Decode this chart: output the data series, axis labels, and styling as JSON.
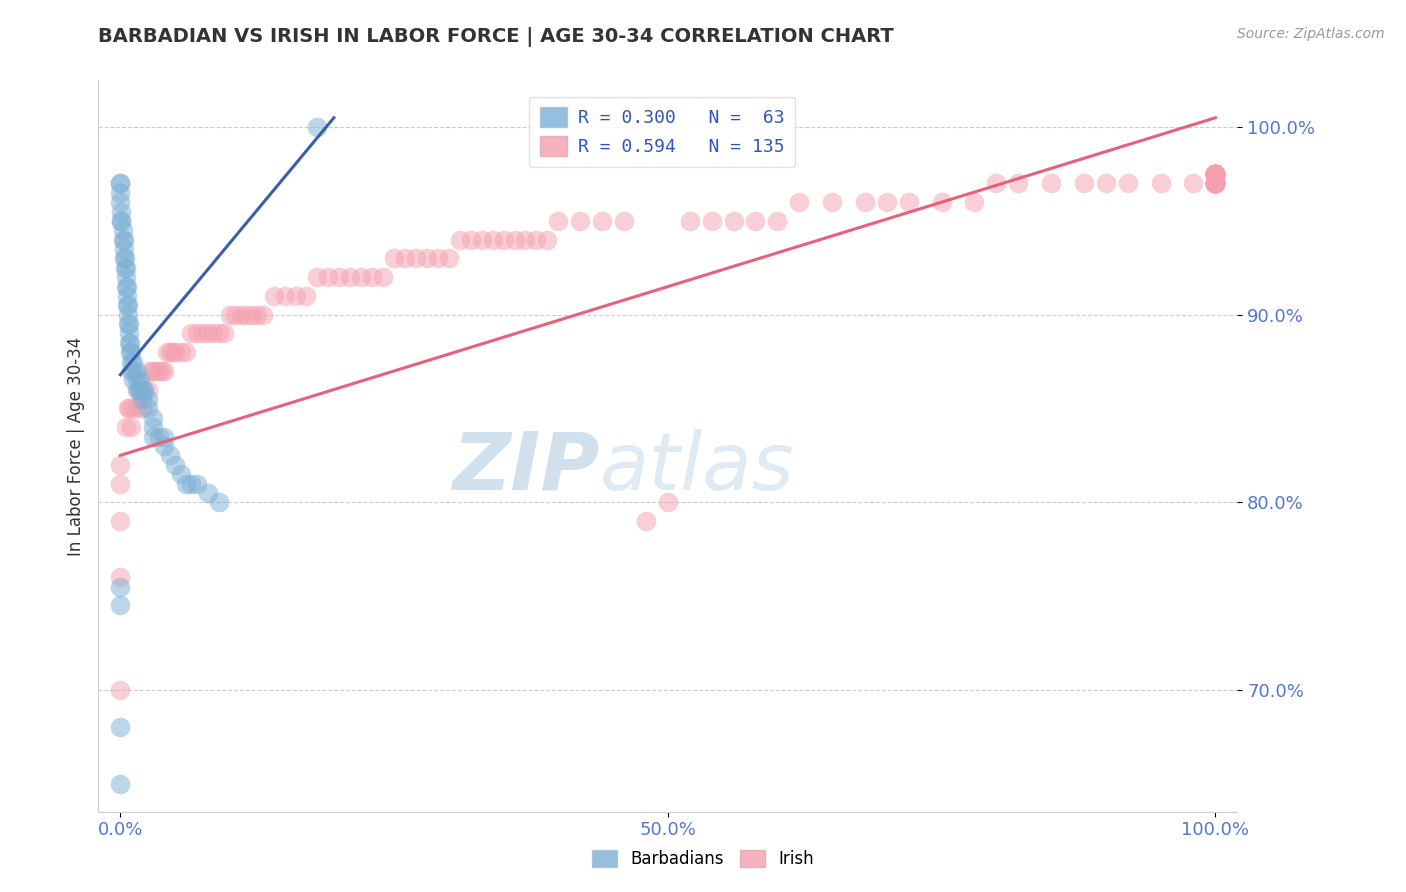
{
  "title": "BARBADIAN VS IRISH IN LABOR FORCE | AGE 30-34 CORRELATION CHART",
  "source_text": "Source: ZipAtlas.com",
  "ylabel": "In Labor Force | Age 30-34",
  "xlim": [
    -0.02,
    1.02
  ],
  "ylim": [
    0.635,
    1.025
  ],
  "ytick_values": [
    0.7,
    0.8,
    0.9,
    1.0
  ],
  "ytick_labels": [
    "70.0%",
    "80.0%",
    "90.0%",
    "100.0%"
  ],
  "xtick_values": [
    0.0,
    0.5,
    1.0
  ],
  "xtick_labels": [
    "0.0%",
    "50.0%",
    "100.0%"
  ],
  "barbadian_color": "#7bafd4",
  "irish_color": "#f4a0b0",
  "barbadian_line_color": "#3a5fa8",
  "irish_line_color": "#e8607a",
  "watermark_zip": "ZIP",
  "watermark_atlas": "atlas",
  "background_color": "#ffffff",
  "barb_line_x0": 0.0,
  "barb_line_y0": 0.868,
  "barb_line_x1": 0.195,
  "barb_line_y1": 1.005,
  "irish_line_x0": 0.0,
  "irish_line_y0": 0.825,
  "irish_line_x1": 1.0,
  "irish_line_y1": 1.005,
  "barbadian_x": [
    0.0,
    0.0,
    0.0,
    0.0,
    0.001,
    0.001,
    0.001,
    0.002,
    0.002,
    0.003,
    0.003,
    0.003,
    0.004,
    0.004,
    0.005,
    0.005,
    0.005,
    0.006,
    0.006,
    0.006,
    0.007,
    0.007,
    0.007,
    0.008,
    0.008,
    0.008,
    0.009,
    0.009,
    0.01,
    0.01,
    0.01,
    0.012,
    0.012,
    0.012,
    0.015,
    0.015,
    0.015,
    0.018,
    0.018,
    0.02,
    0.02,
    0.022,
    0.025,
    0.025,
    0.03,
    0.03,
    0.03,
    0.035,
    0.04,
    0.04,
    0.045,
    0.05,
    0.055,
    0.06,
    0.065,
    0.07,
    0.08,
    0.09,
    0.0,
    0.0,
    0.0,
    0.18,
    0.0
  ],
  "barbadian_y": [
    0.97,
    0.97,
    0.965,
    0.96,
    0.955,
    0.95,
    0.95,
    0.945,
    0.94,
    0.94,
    0.935,
    0.93,
    0.93,
    0.925,
    0.925,
    0.92,
    0.915,
    0.915,
    0.91,
    0.905,
    0.905,
    0.9,
    0.895,
    0.895,
    0.89,
    0.885,
    0.885,
    0.88,
    0.88,
    0.875,
    0.87,
    0.875,
    0.87,
    0.865,
    0.87,
    0.865,
    0.86,
    0.865,
    0.86,
    0.86,
    0.855,
    0.86,
    0.855,
    0.85,
    0.845,
    0.84,
    0.835,
    0.835,
    0.835,
    0.83,
    0.825,
    0.82,
    0.815,
    0.81,
    0.81,
    0.81,
    0.805,
    0.8,
    0.755,
    0.745,
    0.68,
    1.0,
    0.65
  ],
  "irish_x": [
    0.0,
    0.0,
    0.0,
    0.0,
    0.0,
    0.005,
    0.007,
    0.008,
    0.01,
    0.012,
    0.015,
    0.016,
    0.018,
    0.02,
    0.022,
    0.025,
    0.027,
    0.03,
    0.033,
    0.035,
    0.038,
    0.04,
    0.043,
    0.045,
    0.048,
    0.05,
    0.055,
    0.06,
    0.065,
    0.07,
    0.075,
    0.08,
    0.085,
    0.09,
    0.095,
    0.1,
    0.105,
    0.11,
    0.115,
    0.12,
    0.125,
    0.13,
    0.14,
    0.15,
    0.16,
    0.17,
    0.18,
    0.19,
    0.2,
    0.21,
    0.22,
    0.23,
    0.24,
    0.25,
    0.26,
    0.27,
    0.28,
    0.29,
    0.3,
    0.31,
    0.32,
    0.33,
    0.34,
    0.35,
    0.36,
    0.37,
    0.38,
    0.39,
    0.4,
    0.42,
    0.44,
    0.46,
    0.48,
    0.5,
    0.52,
    0.54,
    0.56,
    0.58,
    0.6,
    0.62,
    0.65,
    0.68,
    0.7,
    0.72,
    0.75,
    0.78,
    0.8,
    0.82,
    0.85,
    0.88,
    0.9,
    0.92,
    0.95,
    0.98,
    1.0,
    1.0,
    1.0,
    1.0,
    1.0,
    1.0,
    1.0,
    1.0,
    1.0,
    1.0,
    1.0,
    1.0,
    1.0,
    1.0,
    1.0,
    1.0,
    1.0,
    1.0,
    1.0,
    1.0,
    1.0,
    1.0,
    1.0,
    1.0,
    1.0,
    1.0,
    1.0,
    1.0,
    1.0,
    1.0,
    1.0,
    1.0,
    1.0,
    1.0,
    1.0,
    1.0,
    1.0,
    1.0,
    1.0,
    1.0,
    1.0
  ],
  "irish_y": [
    0.82,
    0.81,
    0.79,
    0.76,
    0.7,
    0.84,
    0.85,
    0.85,
    0.84,
    0.85,
    0.85,
    0.86,
    0.86,
    0.85,
    0.86,
    0.86,
    0.87,
    0.87,
    0.87,
    0.87,
    0.87,
    0.87,
    0.88,
    0.88,
    0.88,
    0.88,
    0.88,
    0.88,
    0.89,
    0.89,
    0.89,
    0.89,
    0.89,
    0.89,
    0.89,
    0.9,
    0.9,
    0.9,
    0.9,
    0.9,
    0.9,
    0.9,
    0.91,
    0.91,
    0.91,
    0.91,
    0.92,
    0.92,
    0.92,
    0.92,
    0.92,
    0.92,
    0.92,
    0.93,
    0.93,
    0.93,
    0.93,
    0.93,
    0.93,
    0.94,
    0.94,
    0.94,
    0.94,
    0.94,
    0.94,
    0.94,
    0.94,
    0.94,
    0.95,
    0.95,
    0.95,
    0.95,
    0.79,
    0.8,
    0.95,
    0.95,
    0.95,
    0.95,
    0.95,
    0.96,
    0.96,
    0.96,
    0.96,
    0.96,
    0.96,
    0.96,
    0.97,
    0.97,
    0.97,
    0.97,
    0.97,
    0.97,
    0.97,
    0.97,
    0.97,
    0.97,
    0.97,
    0.97,
    0.97,
    0.97,
    0.97,
    0.97,
    0.97,
    0.97,
    0.97,
    0.97,
    0.97,
    0.97,
    0.97,
    0.97,
    0.97,
    0.975,
    0.975,
    0.975,
    0.975,
    0.975,
    0.975,
    0.975,
    0.975,
    0.975,
    0.975,
    0.975,
    0.975,
    0.975,
    0.975,
    0.975,
    0.975,
    0.975,
    0.975,
    0.975,
    0.975,
    0.975,
    0.975,
    0.975,
    0.975
  ]
}
